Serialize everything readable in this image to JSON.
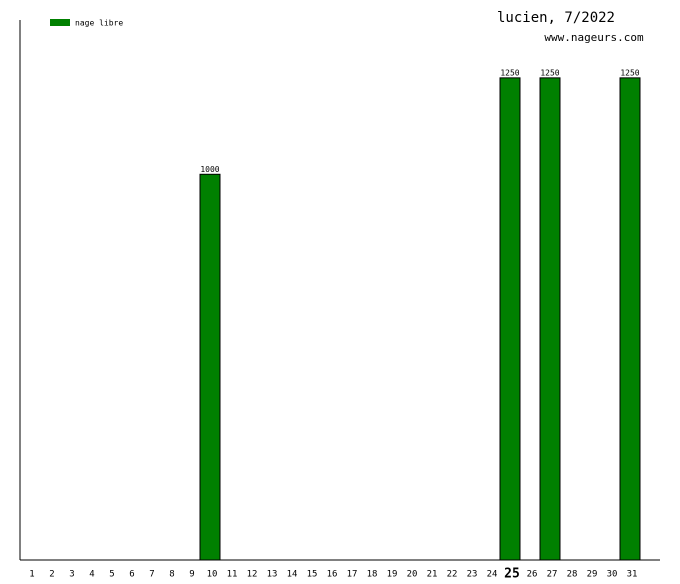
{
  "chart_data": {
    "type": "bar",
    "title": "lucien, 7/2022",
    "subtitle": "www.nageurs.com",
    "categories": [
      "1",
      "2",
      "3",
      "4",
      "5",
      "6",
      "7",
      "8",
      "9",
      "10",
      "11",
      "12",
      "13",
      "14",
      "15",
      "16",
      "17",
      "18",
      "19",
      "20",
      "21",
      "22",
      "23",
      "24",
      "25",
      "26",
      "27",
      "28",
      "29",
      "30",
      "31"
    ],
    "series": [
      {
        "name": "nage libre",
        "color": "#008000",
        "values": [
          null,
          null,
          null,
          null,
          null,
          null,
          null,
          null,
          null,
          1000,
          null,
          null,
          null,
          null,
          null,
          null,
          null,
          null,
          null,
          null,
          null,
          null,
          null,
          null,
          1250,
          null,
          1250,
          null,
          null,
          null,
          1250
        ]
      }
    ],
    "ylim": [
      0,
      1400
    ],
    "highlight_index": 24,
    "legend": "top-left"
  }
}
